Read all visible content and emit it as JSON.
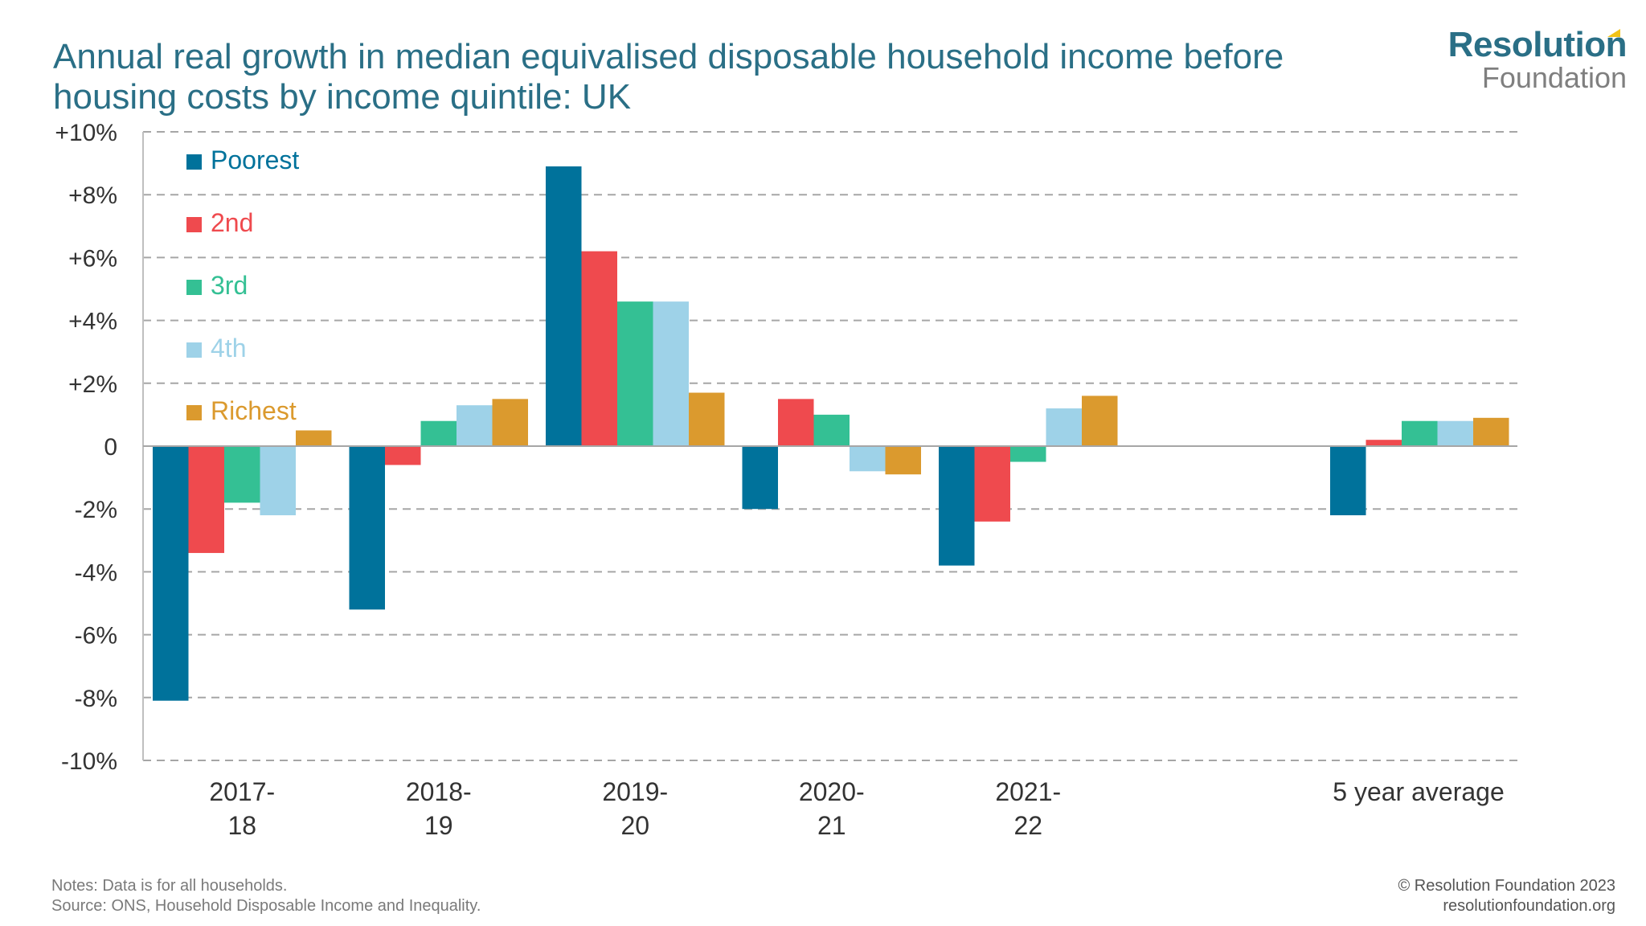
{
  "header": {
    "title": "Annual real growth in median equivalised disposable household income before housing costs by income quintile: UK"
  },
  "logo": {
    "word1": "Resolution",
    "word2": "Foundation"
  },
  "footer": {
    "notes": "Notes: Data is for all households.",
    "source": "Source: ONS, Household Disposable Income and Inequality.",
    "copyright": "© Resolution Foundation 2023",
    "website": "resolutionfoundation.org"
  },
  "chart_data": {
    "type": "bar",
    "title": "Annual real growth in median equivalised disposable household income before housing costs by income quintile: UK",
    "xlabel": "",
    "ylabel": "",
    "ylim": [
      -10,
      10
    ],
    "grid": true,
    "legend_position": "top-left",
    "yticks": [
      {
        "value": 10,
        "label": "+10%"
      },
      {
        "value": 8,
        "label": "+8%"
      },
      {
        "value": 6,
        "label": "+6%"
      },
      {
        "value": 4,
        "label": "+4%"
      },
      {
        "value": 2,
        "label": "+2%"
      },
      {
        "value": 0,
        "label": "0"
      },
      {
        "value": -2,
        "label": "-2%"
      },
      {
        "value": -4,
        "label": "-4%"
      },
      {
        "value": -6,
        "label": "-6%"
      },
      {
        "value": -8,
        "label": "-8%"
      },
      {
        "value": -10,
        "label": "-10%"
      }
    ],
    "categories": [
      [
        "2017-",
        "18"
      ],
      [
        "2018-",
        "19"
      ],
      [
        "2019-",
        "20"
      ],
      [
        "2020-",
        "21"
      ],
      [
        "2021-",
        "22"
      ],
      [
        "5 year average"
      ]
    ],
    "series": [
      {
        "name": "Poorest",
        "color": "#00729b",
        "values": [
          -8.1,
          -5.2,
          8.9,
          -2.0,
          -3.8,
          -2.2
        ]
      },
      {
        "name": "2nd",
        "color": "#ef4a4e",
        "values": [
          -3.4,
          -0.6,
          6.2,
          1.5,
          -2.4,
          0.2
        ]
      },
      {
        "name": "3rd",
        "color": "#34c094",
        "values": [
          -1.8,
          0.8,
          4.6,
          1.0,
          -0.5,
          0.8
        ]
      },
      {
        "name": "4th",
        "color": "#9ed2e8",
        "values": [
          -2.2,
          1.3,
          4.6,
          -0.8,
          1.2,
          0.8
        ]
      },
      {
        "name": "Richest",
        "color": "#db9a2e",
        "values": [
          0.5,
          1.5,
          1.7,
          -0.9,
          1.6,
          0.9
        ]
      }
    ],
    "colors": {
      "axis_text": "#333333",
      "grid": "#a6a6a6",
      "legend_text_match_series": true
    }
  }
}
